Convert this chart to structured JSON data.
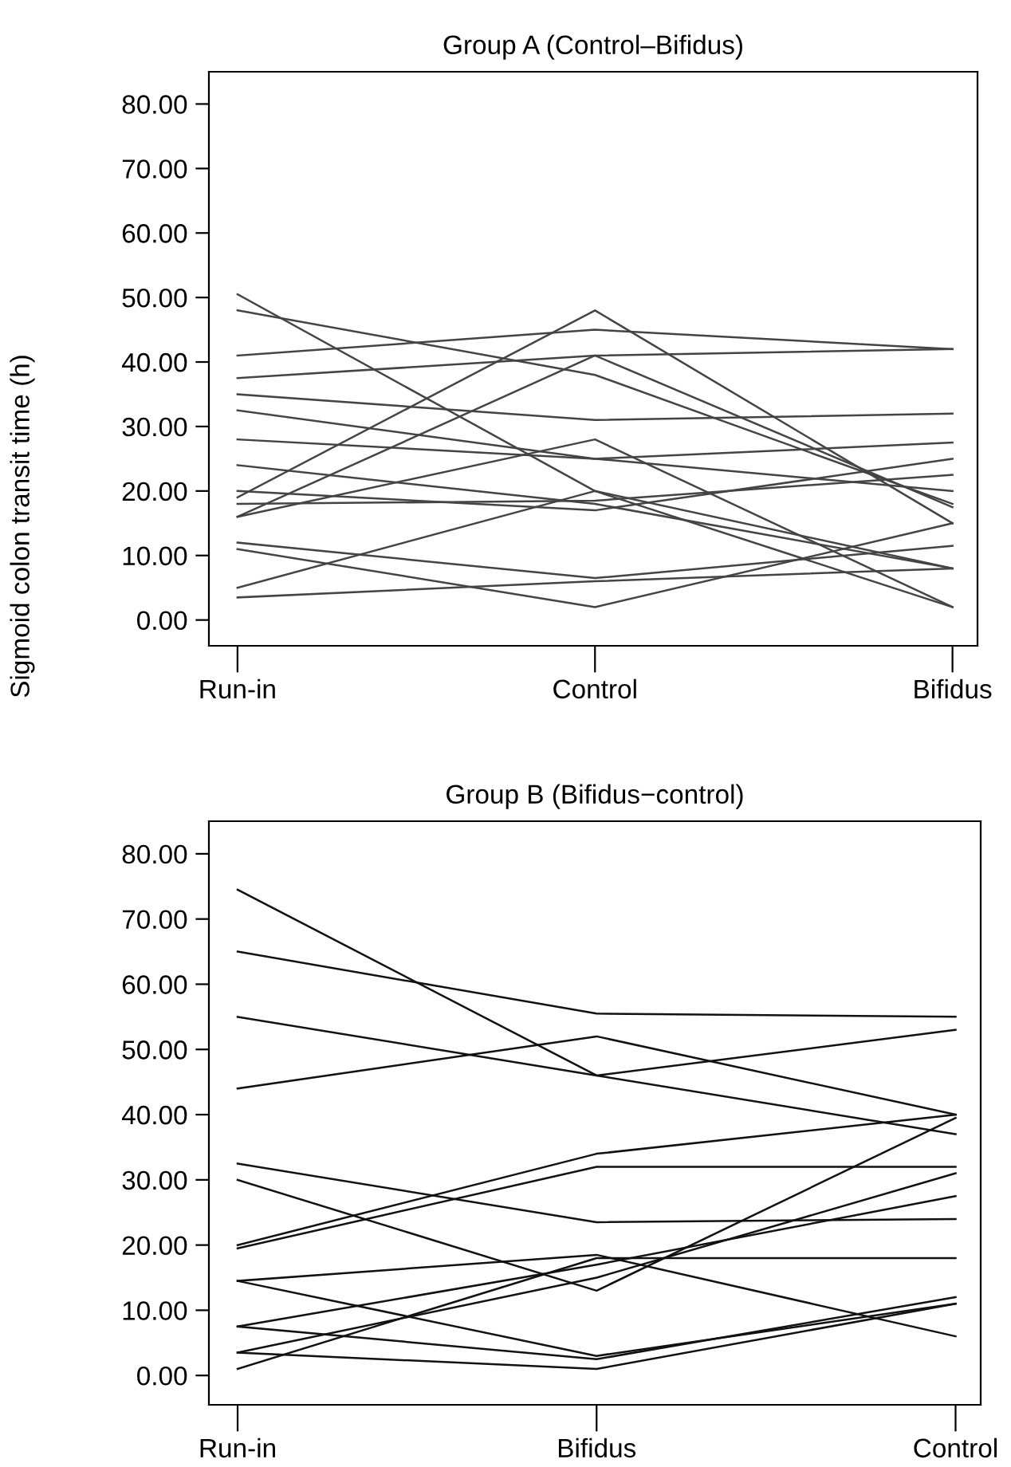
{
  "chart_data": [
    {
      "type": "line",
      "title": "Group A (Control–Bifidus)",
      "ylabel": "Sigmoid colon transit time (h)",
      "categories": [
        "Run-in",
        "Control",
        "Bifidus"
      ],
      "ylim": [
        -4,
        85
      ],
      "yticks": [
        {
          "value": 0,
          "label": "0.00"
        },
        {
          "value": 10,
          "label": "10.00"
        },
        {
          "value": 20,
          "label": "20.00"
        },
        {
          "value": 30,
          "label": "30.00"
        },
        {
          "value": 40,
          "label": "40.00"
        },
        {
          "value": 50,
          "label": "50.00"
        },
        {
          "value": 60,
          "label": "60.00"
        },
        {
          "value": 70,
          "label": "70.00"
        },
        {
          "value": 80,
          "label": "80.00"
        }
      ],
      "grid": false,
      "marker": "none",
      "line_style": "solid",
      "series": [
        {
          "color": "#444444",
          "values": [
            50.5,
            20,
            2
          ]
        },
        {
          "color": "#444444",
          "values": [
            48,
            38,
            18
          ]
        },
        {
          "color": "#444444",
          "values": [
            41,
            45,
            42
          ]
        },
        {
          "color": "#444444",
          "values": [
            37.5,
            41,
            42
          ]
        },
        {
          "color": "#444444",
          "values": [
            35,
            31,
            32
          ]
        },
        {
          "color": "#444444",
          "values": [
            32.5,
            25,
            27.5
          ]
        },
        {
          "color": "#444444",
          "values": [
            28,
            25,
            20
          ]
        },
        {
          "color": "#444444",
          "values": [
            24,
            18,
            8
          ]
        },
        {
          "color": "#444444",
          "values": [
            19,
            48,
            15
          ]
        },
        {
          "color": "#444444",
          "values": [
            16,
            41,
            17.5
          ]
        },
        {
          "color": "#444444",
          "values": [
            16,
            28,
            2
          ]
        },
        {
          "color": "#444444",
          "values": [
            18,
            18.5,
            22.5
          ]
        },
        {
          "color": "#444444",
          "values": [
            12,
            6.5,
            11.5
          ]
        },
        {
          "color": "#444444",
          "values": [
            11,
            2,
            15
          ]
        },
        {
          "color": "#444444",
          "values": [
            5,
            20,
            8
          ]
        },
        {
          "color": "#444444",
          "values": [
            3.5,
            6,
            8
          ]
        },
        {
          "color": "#444444",
          "values": [
            20,
            17,
            25
          ]
        }
      ]
    },
    {
      "type": "line",
      "title": "Group B (Bifidus−control)",
      "categories": [
        "Run-in",
        "Bifidus",
        "Control"
      ],
      "ylim": [
        -4.5,
        85
      ],
      "yticks": [
        {
          "value": 0,
          "label": "0.00"
        },
        {
          "value": 10,
          "label": "10.00"
        },
        {
          "value": 20,
          "label": "20.00"
        },
        {
          "value": 30,
          "label": "30.00"
        },
        {
          "value": 40,
          "label": "40.00"
        },
        {
          "value": 50,
          "label": "50.00"
        },
        {
          "value": 60,
          "label": "60.00"
        },
        {
          "value": 70,
          "label": "70.00"
        },
        {
          "value": 80,
          "label": "80.00"
        }
      ],
      "grid": false,
      "marker": "none",
      "line_style": "solid",
      "series": [
        {
          "color": "#111111",
          "values": [
            74.5,
            46,
            53
          ]
        },
        {
          "color": "#111111",
          "values": [
            65,
            55.5,
            55
          ]
        },
        {
          "color": "#111111",
          "values": [
            55,
            46,
            37
          ]
        },
        {
          "color": "#111111",
          "values": [
            44,
            52,
            40
          ]
        },
        {
          "color": "#111111",
          "values": [
            32.5,
            23.5,
            24
          ]
        },
        {
          "color": "#111111",
          "values": [
            30,
            13,
            39.5
          ]
        },
        {
          "color": "#111111",
          "values": [
            20,
            34,
            40
          ]
        },
        {
          "color": "#111111",
          "values": [
            19.5,
            32,
            32
          ]
        },
        {
          "color": "#111111",
          "values": [
            14.5,
            3,
            11
          ]
        },
        {
          "color": "#111111",
          "values": [
            14.5,
            18.5,
            6
          ]
        },
        {
          "color": "#111111",
          "values": [
            7.5,
            17,
            27.5
          ]
        },
        {
          "color": "#111111",
          "values": [
            7.5,
            2.5,
            12
          ]
        },
        {
          "color": "#111111",
          "values": [
            3.5,
            15,
            31
          ]
        },
        {
          "color": "#111111",
          "values": [
            3.5,
            1,
            11
          ]
        },
        {
          "color": "#111111",
          "values": [
            1,
            18,
            18
          ]
        }
      ]
    }
  ]
}
